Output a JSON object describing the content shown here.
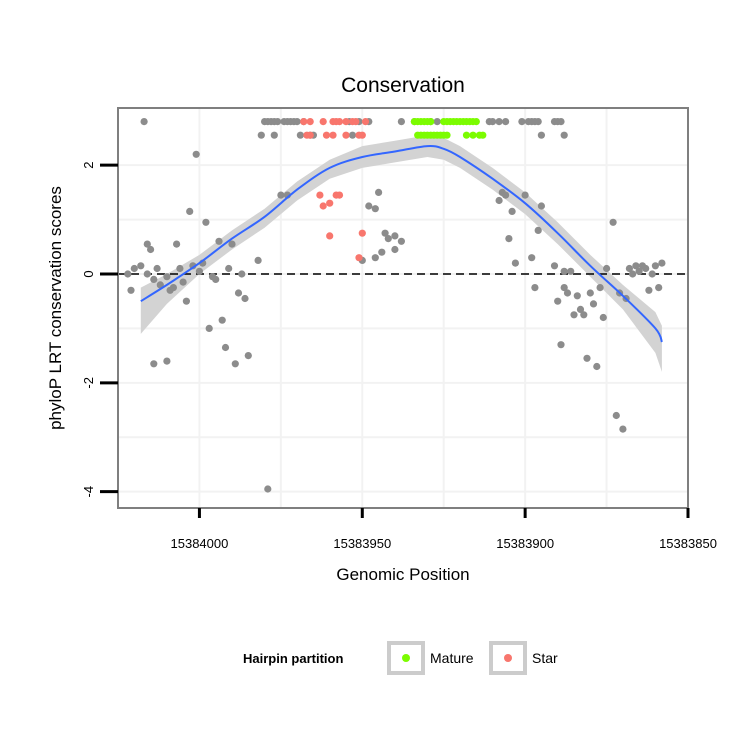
{
  "chart_data": {
    "type": "scatter",
    "title": "Conservation",
    "xlabel": "Genomic Position",
    "ylabel": "phyloP LRT conservation scores",
    "xlim": [
      15384025,
      15383850
    ],
    "ylim": [
      -4.3,
      3.05
    ],
    "x_ticks": [
      15384000,
      15383950,
      15383900,
      15383850
    ],
    "x_tick_labels": [
      "15384000",
      "15383950",
      "15383900",
      "15383850"
    ],
    "y_ticks": [
      2,
      0,
      -2,
      -4
    ],
    "y_tick_labels": [
      "2",
      "0",
      "-2",
      "-4"
    ],
    "reference_line": 0,
    "grid": true,
    "legend": {
      "title": "Hairpin partition",
      "position": "bottom",
      "items": [
        {
          "label": "Mature",
          "color": "#7cfc00"
        },
        {
          "label": "Star",
          "color": "#f8766d"
        }
      ]
    },
    "colors": {
      "other": "#8c8c8c",
      "mature": "#7cfc00",
      "star": "#f8766d",
      "smooth_line": "#3366ff",
      "band": "#d3d3d3",
      "panel_border": "#7f7f7f"
    },
    "points": {
      "other": [
        [
          15384017,
          2.8
        ],
        [
          15384021,
          -0.3
        ],
        [
          15384022,
          0.0
        ],
        [
          15384020,
          0.1
        ],
        [
          15384018,
          0.15
        ],
        [
          15384016,
          0.0
        ],
        [
          15384014,
          -0.1
        ],
        [
          15384013,
          0.1
        ],
        [
          15384012,
          -0.2
        ],
        [
          15384016,
          0.55
        ],
        [
          15384015,
          0.45
        ],
        [
          15384014,
          -1.65
        ],
        [
          15384010,
          -0.05
        ],
        [
          15384009,
          -0.3
        ],
        [
          15384008,
          -0.25
        ],
        [
          15384010,
          -1.6
        ],
        [
          15384006,
          0.1
        ],
        [
          15384005,
          -0.15
        ],
        [
          15384007,
          0.55
        ],
        [
          15384004,
          -0.5
        ],
        [
          15384003,
          1.15
        ],
        [
          15384002,
          0.15
        ],
        [
          15384001,
          2.2
        ],
        [
          15384000,
          0.05
        ],
        [
          15383999,
          0.2
        ],
        [
          15383998,
          0.95
        ],
        [
          15383997,
          -1.0
        ],
        [
          15383996,
          -0.05
        ],
        [
          15383995,
          -0.1
        ],
        [
          15383994,
          0.6
        ],
        [
          15383993,
          -0.85
        ],
        [
          15383992,
          -1.35
        ],
        [
          15383991,
          0.1
        ],
        [
          15383990,
          0.55
        ],
        [
          15383989,
          -1.65
        ],
        [
          15383988,
          -0.35
        ],
        [
          15383987,
          0.0
        ],
        [
          15383986,
          -0.45
        ],
        [
          15383985,
          -1.5
        ],
        [
          15383979,
          -3.95
        ],
        [
          15383982,
          0.25
        ],
        [
          15383981,
          2.55
        ],
        [
          15383980,
          2.8
        ],
        [
          15383979,
          2.8
        ],
        [
          15383978,
          2.8
        ],
        [
          15383977,
          2.8
        ],
        [
          15383976,
          2.8
        ],
        [
          15383977,
          2.55
        ],
        [
          15383975,
          1.45
        ],
        [
          15383973,
          1.45
        ],
        [
          15383974,
          2.8
        ],
        [
          15383973,
          2.8
        ],
        [
          15383972,
          2.8
        ],
        [
          15383971,
          2.8
        ],
        [
          15383970,
          2.8
        ],
        [
          15383968,
          2.8
        ],
        [
          15383969,
          2.55
        ],
        [
          15383965,
          2.55
        ],
        [
          15383966,
          2.55
        ],
        [
          15383954,
          2.8
        ],
        [
          15383953,
          2.55
        ],
        [
          15383951,
          2.8
        ],
        [
          15383946,
          1.2
        ],
        [
          15383945,
          1.5
        ],
        [
          15383943,
          0.75
        ],
        [
          15383942,
          0.65
        ],
        [
          15383940,
          0.7
        ],
        [
          15383938,
          0.6
        ],
        [
          15383944,
          0.4
        ],
        [
          15383946,
          0.3
        ],
        [
          15383950,
          0.25
        ],
        [
          15383948,
          1.25
        ],
        [
          15383948,
          2.8
        ],
        [
          15383938,
          2.8
        ],
        [
          15383934,
          2.8
        ],
        [
          15383929,
          2.8
        ],
        [
          15383927,
          2.8
        ],
        [
          15383911,
          2.8
        ],
        [
          15383910,
          2.8
        ],
        [
          15383908,
          2.8
        ],
        [
          15383906,
          2.8
        ],
        [
          15383901,
          2.8
        ],
        [
          15383899,
          2.8
        ],
        [
          15383898,
          2.8
        ],
        [
          15383897,
          2.8
        ],
        [
          15383896,
          2.8
        ],
        [
          15383895,
          2.55
        ],
        [
          15383891,
          2.8
        ],
        [
          15383890,
          2.8
        ],
        [
          15383889,
          2.8
        ],
        [
          15383888,
          2.55
        ],
        [
          15383908,
          1.35
        ],
        [
          15383907,
          1.5
        ],
        [
          15383906,
          1.45
        ],
        [
          15383905,
          0.65
        ],
        [
          15383904,
          1.15
        ],
        [
          15383903,
          0.2
        ],
        [
          15383900,
          1.45
        ],
        [
          15383898,
          0.3
        ],
        [
          15383897,
          -0.25
        ],
        [
          15383896,
          0.8
        ],
        [
          15383895,
          1.25
        ],
        [
          15383891,
          0.15
        ],
        [
          15383890,
          -0.5
        ],
        [
          15383889,
          -1.3
        ],
        [
          15383888,
          -0.25
        ],
        [
          15383887,
          -0.35
        ],
        [
          15383886,
          0.05
        ],
        [
          15383885,
          -0.75
        ],
        [
          15383884,
          -0.4
        ],
        [
          15383883,
          -0.65
        ],
        [
          15383882,
          -0.75
        ],
        [
          15383881,
          -1.55
        ],
        [
          15383880,
          -0.35
        ],
        [
          15383879,
          -0.55
        ],
        [
          15383878,
          -1.7
        ],
        [
          15383877,
          -0.25
        ],
        [
          15383876,
          -0.8
        ],
        [
          15383875,
          0.1
        ],
        [
          15383873,
          0.95
        ],
        [
          15383872,
          -2.6
        ],
        [
          15383871,
          -0.35
        ],
        [
          15383870,
          -2.85
        ],
        [
          15383869,
          -0.45
        ],
        [
          15383868,
          0.1
        ],
        [
          15383867,
          0.0
        ],
        [
          15383866,
          0.15
        ],
        [
          15383865,
          0.05
        ],
        [
          15383864,
          0.15
        ],
        [
          15383863,
          0.1
        ],
        [
          15383862,
          -0.3
        ],
        [
          15383861,
          0.0
        ],
        [
          15383860,
          0.15
        ],
        [
          15383859,
          -0.25
        ],
        [
          15383858,
          0.2
        ],
        [
          15383940,
          0.45
        ],
        [
          15383888,
          0.05
        ]
      ],
      "mature": [
        [
          15383934,
          2.8
        ],
        [
          15383933,
          2.8
        ],
        [
          15383932,
          2.8
        ],
        [
          15383931,
          2.8
        ],
        [
          15383930,
          2.8
        ],
        [
          15383929,
          2.8
        ],
        [
          15383925,
          2.8
        ],
        [
          15383924,
          2.8
        ],
        [
          15383923,
          2.8
        ],
        [
          15383922,
          2.8
        ],
        [
          15383921,
          2.8
        ],
        [
          15383920,
          2.8
        ],
        [
          15383919,
          2.8
        ],
        [
          15383918,
          2.8
        ],
        [
          15383917,
          2.8
        ],
        [
          15383916,
          2.8
        ],
        [
          15383915,
          2.8
        ],
        [
          15383933,
          2.55
        ],
        [
          15383932,
          2.55
        ],
        [
          15383931,
          2.55
        ],
        [
          15383930,
          2.55
        ],
        [
          15383929,
          2.55
        ],
        [
          15383928,
          2.55
        ],
        [
          15383927,
          2.55
        ],
        [
          15383926,
          2.55
        ],
        [
          15383925,
          2.55
        ],
        [
          15383924,
          2.55
        ],
        [
          15383918,
          2.55
        ],
        [
          15383916,
          2.55
        ],
        [
          15383914,
          2.55
        ],
        [
          15383913,
          2.55
        ]
      ],
      "star": [
        [
          15383968,
          2.8
        ],
        [
          15383966,
          2.8
        ],
        [
          15383962,
          2.8
        ],
        [
          15383959,
          2.8
        ],
        [
          15383958,
          2.8
        ],
        [
          15383957,
          2.8
        ],
        [
          15383955,
          2.8
        ],
        [
          15383953,
          2.8
        ],
        [
          15383952,
          2.8
        ],
        [
          15383949,
          2.8
        ],
        [
          15383967,
          2.55
        ],
        [
          15383966,
          2.55
        ],
        [
          15383961,
          2.55
        ],
        [
          15383959,
          2.55
        ],
        [
          15383955,
          2.55
        ],
        [
          15383951,
          2.55
        ],
        [
          15383950,
          2.55
        ],
        [
          15383963,
          1.45
        ],
        [
          15383960,
          1.3
        ],
        [
          15383958,
          1.45
        ],
        [
          15383957,
          1.45
        ],
        [
          15383960,
          0.7
        ],
        [
          15383950,
          0.75
        ],
        [
          15383951,
          0.3
        ],
        [
          15383962,
          1.25
        ]
      ]
    },
    "smooth_fit": {
      "x": [
        15384018,
        15384010,
        15384000,
        15383990,
        15383980,
        15383970,
        15383960,
        15383950,
        15383940,
        15383930,
        15383925,
        15383920,
        15383910,
        15383900,
        15383890,
        15383880,
        15383870,
        15383860,
        15383858
      ],
      "y": [
        -0.5,
        -0.2,
        0.2,
        0.65,
        1.05,
        1.55,
        1.95,
        2.15,
        2.25,
        2.35,
        2.3,
        2.15,
        1.75,
        1.3,
        0.75,
        0.15,
        -0.4,
        -1.0,
        -1.25
      ],
      "upper": [
        -0.25,
        0.0,
        0.35,
        0.8,
        1.2,
        1.7,
        2.1,
        2.35,
        2.45,
        2.55,
        2.5,
        2.35,
        1.95,
        1.5,
        0.95,
        0.35,
        -0.2,
        -0.7,
        -0.95
      ],
      "lower": [
        -1.1,
        -0.55,
        0.0,
        0.45,
        0.85,
        1.35,
        1.75,
        1.95,
        2.05,
        2.15,
        2.1,
        1.95,
        1.55,
        1.1,
        0.55,
        -0.05,
        -0.65,
        -1.45,
        -1.8
      ]
    }
  }
}
